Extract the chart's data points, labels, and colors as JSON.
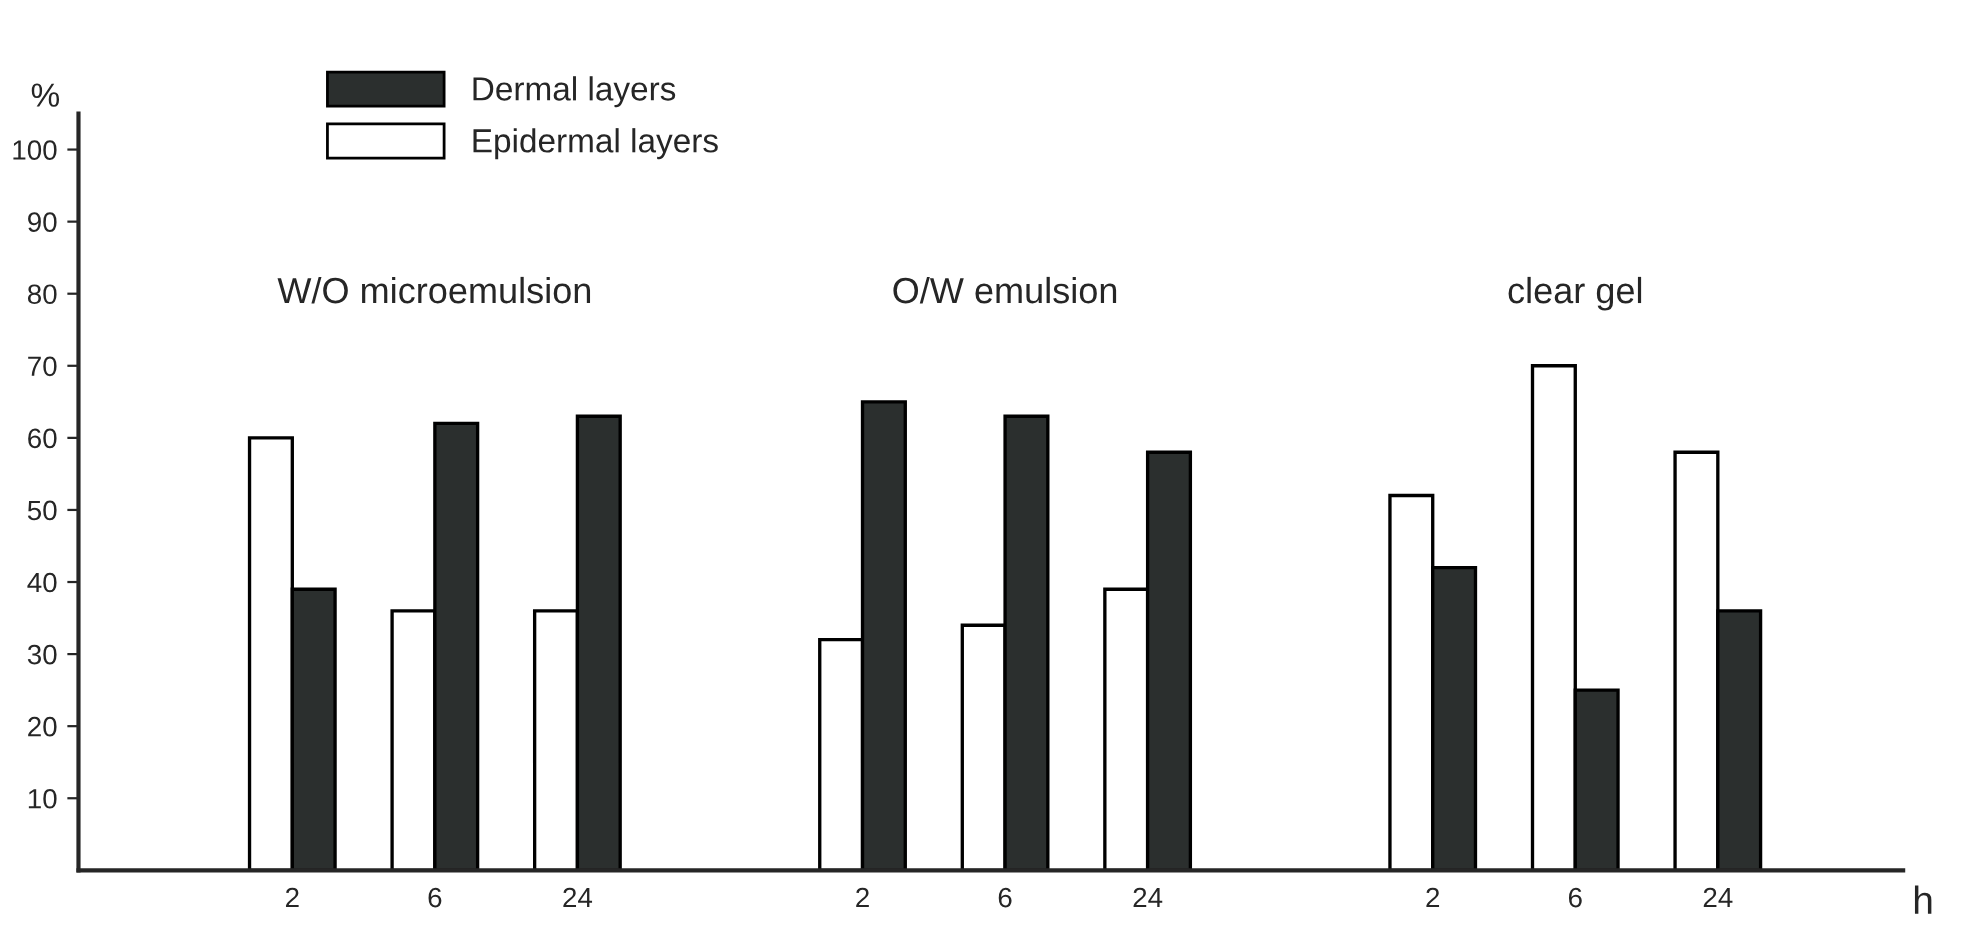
{
  "chart_data": {
    "type": "bar",
    "categories": [
      "2",
      "6",
      "24",
      null,
      "2",
      "6",
      "24",
      null,
      "2",
      "6",
      "24"
    ],
    "series": [
      {
        "name": "Epidermal layers",
        "color": "#ffffff",
        "values": [
          60,
          36,
          36,
          null,
          32,
          34,
          39,
          null,
          52,
          70,
          58
        ]
      },
      {
        "name": "Dermal layers",
        "color": "#2b2f2e",
        "values": [
          39,
          62,
          63,
          null,
          65,
          63,
          58,
          null,
          42,
          25,
          36
        ]
      }
    ],
    "ylim": [
      0,
      105
    ],
    "yticks": [
      10,
      20,
      30,
      40,
      50,
      60,
      70,
      80,
      90,
      100
    ],
    "ylabel": "%",
    "xlabel": "h",
    "annotations": [
      "W/O microemulsion",
      "O/W emulsion",
      "clear gel"
    ],
    "legend": "top left",
    "grid": false
  }
}
